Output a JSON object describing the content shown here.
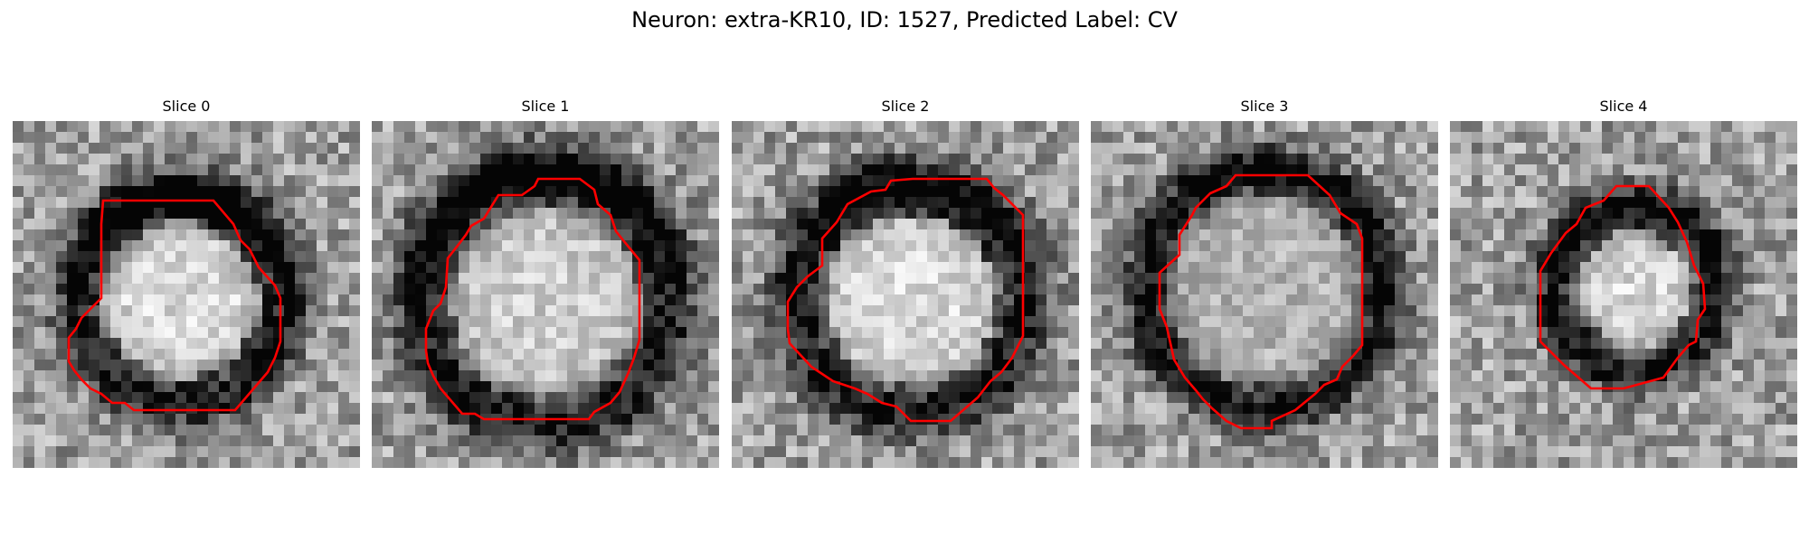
{
  "figure": {
    "title": "Neuron: extra-KR10, ID: 1527, Predicted Label: CV"
  },
  "panels": [
    {
      "title": "Slice 0"
    },
    {
      "title": "Slice 1"
    },
    {
      "title": "Slice 2"
    },
    {
      "title": "Slice 3"
    },
    {
      "title": "Slice 4"
    }
  ],
  "colors": {
    "contour": "#ff0000",
    "background": "#ffffff"
  }
}
